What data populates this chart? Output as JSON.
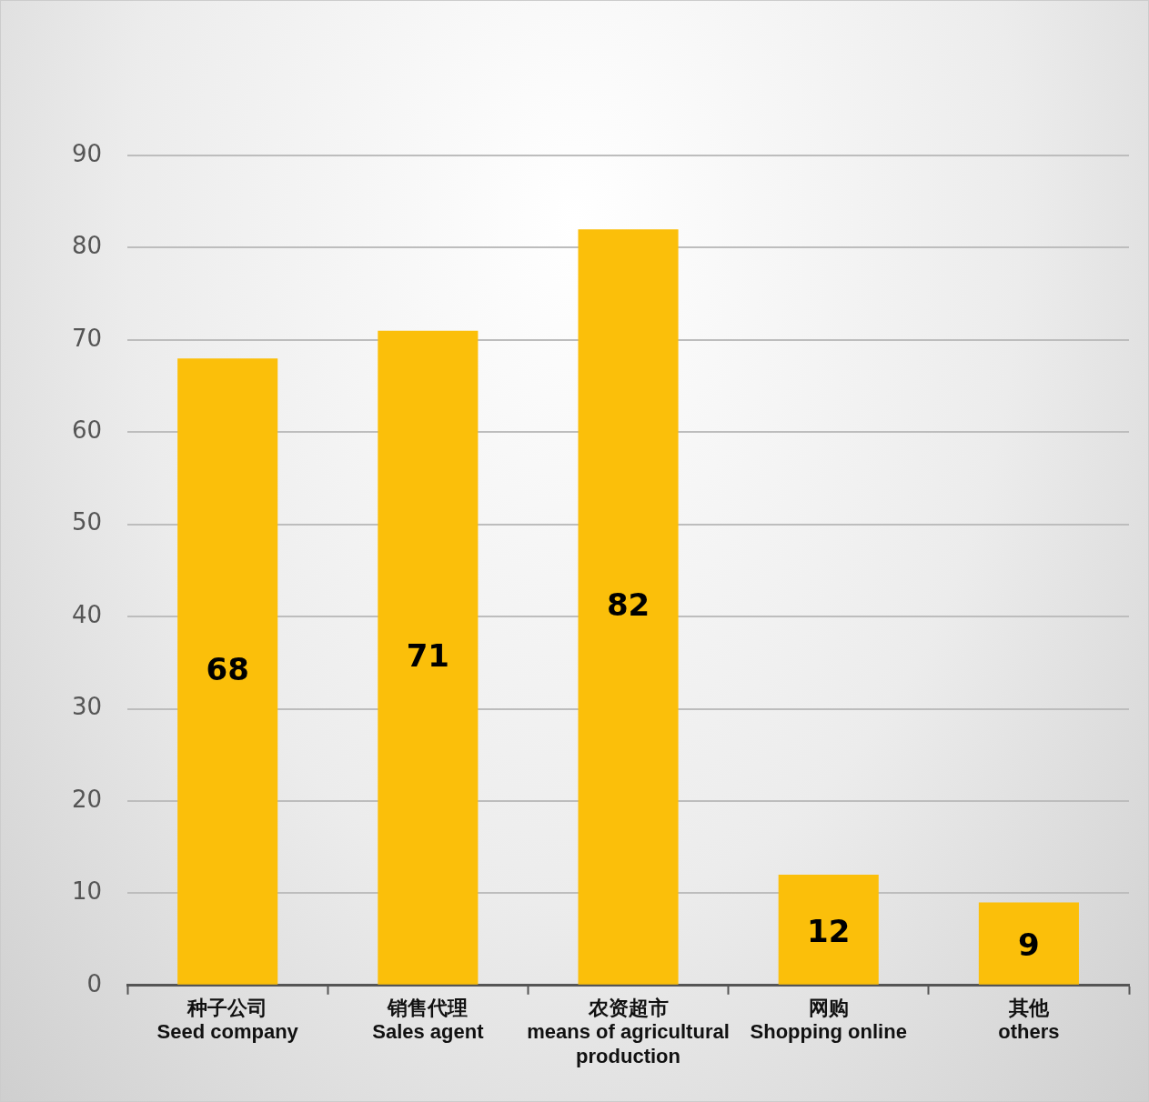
{
  "chart_data": {
    "type": "bar",
    "categories": [
      "种子公司\nSeed company",
      "销售代理\nSales agent",
      "农资超市\nmeans of agricultural production",
      "网购\nShopping online",
      "其他\nothers"
    ],
    "values": [
      68,
      71,
      82,
      12,
      9
    ],
    "color": "#fbbf0a",
    "ylim": [
      0,
      90
    ],
    "yticks": [
      0,
      10,
      20,
      30,
      40,
      50,
      60,
      70,
      80,
      90
    ],
    "grid": "y",
    "legend": false,
    "data_labels": true
  }
}
